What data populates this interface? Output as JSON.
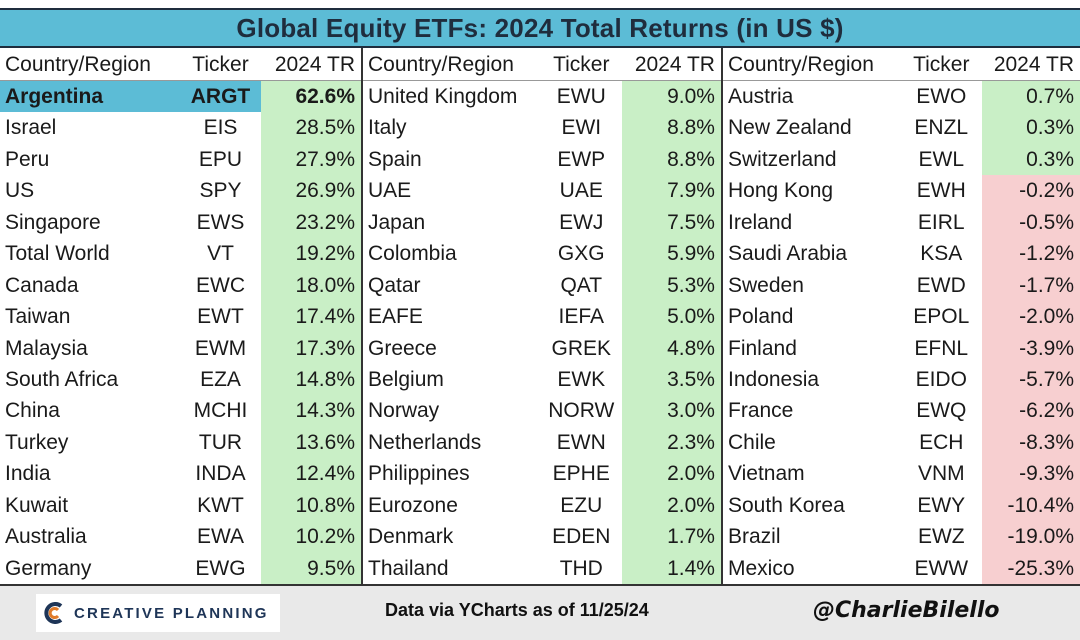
{
  "title": "Global Equity ETFs: 2024 Total Returns (in US $)",
  "headers": {
    "country": "Country/Region",
    "ticker": "Ticker",
    "tr": "2024 TR"
  },
  "colors": {
    "header_blue": "#5cbcd6",
    "positive": "#c9efc6",
    "negative": "#f7cfd0"
  },
  "footer": {
    "logo_text": "CREATIVE PLANNING",
    "logo_icon": "creative-planning-c-icon",
    "source": "Data via YCharts as of 11/25/24",
    "handle": "@CharlieBilello"
  },
  "chart_data": {
    "type": "table",
    "title": "Global Equity ETFs: 2024 Total Returns (in US $)",
    "columns": [
      "Country/Region",
      "Ticker",
      "2024 TR"
    ],
    "panels": [
      [
        {
          "country": "Argentina",
          "ticker": "ARGT",
          "tr": "62.6%",
          "value": 62.6,
          "highlight": true
        },
        {
          "country": "Israel",
          "ticker": "EIS",
          "tr": "28.5%",
          "value": 28.5
        },
        {
          "country": "Peru",
          "ticker": "EPU",
          "tr": "27.9%",
          "value": 27.9
        },
        {
          "country": "US",
          "ticker": "SPY",
          "tr": "26.9%",
          "value": 26.9
        },
        {
          "country": "Singapore",
          "ticker": "EWS",
          "tr": "23.2%",
          "value": 23.2
        },
        {
          "country": "Total World",
          "ticker": "VT",
          "tr": "19.2%",
          "value": 19.2
        },
        {
          "country": "Canada",
          "ticker": "EWC",
          "tr": "18.0%",
          "value": 18.0
        },
        {
          "country": "Taiwan",
          "ticker": "EWT",
          "tr": "17.4%",
          "value": 17.4
        },
        {
          "country": "Malaysia",
          "ticker": "EWM",
          "tr": "17.3%",
          "value": 17.3
        },
        {
          "country": "South Africa",
          "ticker": "EZA",
          "tr": "14.8%",
          "value": 14.8
        },
        {
          "country": "China",
          "ticker": "MCHI",
          "tr": "14.3%",
          "value": 14.3
        },
        {
          "country": "Turkey",
          "ticker": "TUR",
          "tr": "13.6%",
          "value": 13.6
        },
        {
          "country": "India",
          "ticker": "INDA",
          "tr": "12.4%",
          "value": 12.4
        },
        {
          "country": "Kuwait",
          "ticker": "KWT",
          "tr": "10.8%",
          "value": 10.8
        },
        {
          "country": "Australia",
          "ticker": "EWA",
          "tr": "10.2%",
          "value": 10.2
        },
        {
          "country": "Germany",
          "ticker": "EWG",
          "tr": "9.5%",
          "value": 9.5
        }
      ],
      [
        {
          "country": "United Kingdom",
          "ticker": "EWU",
          "tr": "9.0%",
          "value": 9.0
        },
        {
          "country": "Italy",
          "ticker": "EWI",
          "tr": "8.8%",
          "value": 8.8
        },
        {
          "country": "Spain",
          "ticker": "EWP",
          "tr": "8.8%",
          "value": 8.8
        },
        {
          "country": "UAE",
          "ticker": "UAE",
          "tr": "7.9%",
          "value": 7.9
        },
        {
          "country": "Japan",
          "ticker": "EWJ",
          "tr": "7.5%",
          "value": 7.5
        },
        {
          "country": "Colombia",
          "ticker": "GXG",
          "tr": "5.9%",
          "value": 5.9
        },
        {
          "country": "Qatar",
          "ticker": "QAT",
          "tr": "5.3%",
          "value": 5.3
        },
        {
          "country": "EAFE",
          "ticker": "IEFA",
          "tr": "5.0%",
          "value": 5.0
        },
        {
          "country": "Greece",
          "ticker": "GREK",
          "tr": "4.8%",
          "value": 4.8
        },
        {
          "country": "Belgium",
          "ticker": "EWK",
          "tr": "3.5%",
          "value": 3.5
        },
        {
          "country": "Norway",
          "ticker": "NORW",
          "tr": "3.0%",
          "value": 3.0
        },
        {
          "country": "Netherlands",
          "ticker": "EWN",
          "tr": "2.3%",
          "value": 2.3
        },
        {
          "country": "Philippines",
          "ticker": "EPHE",
          "tr": "2.0%",
          "value": 2.0
        },
        {
          "country": "Eurozone",
          "ticker": "EZU",
          "tr": "2.0%",
          "value": 2.0
        },
        {
          "country": "Denmark",
          "ticker": "EDEN",
          "tr": "1.7%",
          "value": 1.7
        },
        {
          "country": "Thailand",
          "ticker": "THD",
          "tr": "1.4%",
          "value": 1.4
        }
      ],
      [
        {
          "country": "Austria",
          "ticker": "EWO",
          "tr": "0.7%",
          "value": 0.7
        },
        {
          "country": "New Zealand",
          "ticker": "ENZL",
          "tr": "0.3%",
          "value": 0.3
        },
        {
          "country": "Switzerland",
          "ticker": "EWL",
          "tr": "0.3%",
          "value": 0.3
        },
        {
          "country": "Hong Kong",
          "ticker": "EWH",
          "tr": "-0.2%",
          "value": -0.2
        },
        {
          "country": "Ireland",
          "ticker": "EIRL",
          "tr": "-0.5%",
          "value": -0.5
        },
        {
          "country": "Saudi Arabia",
          "ticker": "KSA",
          "tr": "-1.2%",
          "value": -1.2
        },
        {
          "country": "Sweden",
          "ticker": "EWD",
          "tr": "-1.7%",
          "value": -1.7
        },
        {
          "country": "Poland",
          "ticker": "EPOL",
          "tr": "-2.0%",
          "value": -2.0
        },
        {
          "country": "Finland",
          "ticker": "EFNL",
          "tr": "-3.9%",
          "value": -3.9
        },
        {
          "country": "Indonesia",
          "ticker": "EIDO",
          "tr": "-5.7%",
          "value": -5.7
        },
        {
          "country": "France",
          "ticker": "EWQ",
          "tr": "-6.2%",
          "value": -6.2
        },
        {
          "country": "Chile",
          "ticker": "ECH",
          "tr": "-8.3%",
          "value": -8.3
        },
        {
          "country": "Vietnam",
          "ticker": "VNM",
          "tr": "-9.3%",
          "value": -9.3
        },
        {
          "country": "South Korea",
          "ticker": "EWY",
          "tr": "-10.4%",
          "value": -10.4
        },
        {
          "country": "Brazil",
          "ticker": "EWZ",
          "tr": "-19.0%",
          "value": -19.0
        },
        {
          "country": "Mexico",
          "ticker": "EWW",
          "tr": "-25.3%",
          "value": -25.3
        }
      ]
    ]
  }
}
